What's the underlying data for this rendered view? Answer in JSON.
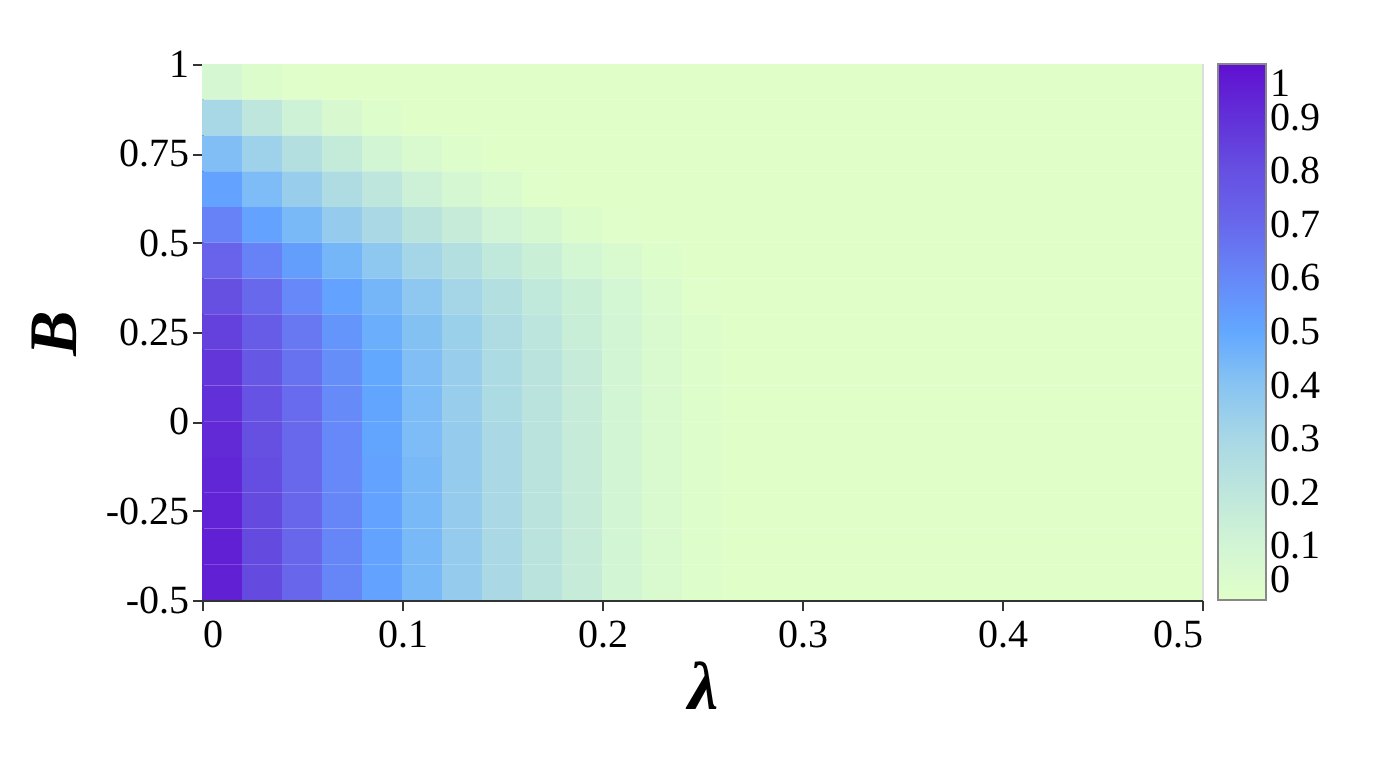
{
  "chart_data": {
    "type": "heatmap",
    "xlabel": "λ",
    "ylabel": "B",
    "x": [
      0.01,
      0.03,
      0.05,
      0.07,
      0.09,
      0.11,
      0.13,
      0.15,
      0.17,
      0.19,
      0.21,
      0.23,
      0.25,
      0.27,
      0.29,
      0.31,
      0.33,
      0.35,
      0.37,
      0.39,
      0.41,
      0.43,
      0.45,
      0.47,
      0.49
    ],
    "y": [
      0.95,
      0.85,
      0.75,
      0.65,
      0.55,
      0.45,
      0.35,
      0.25,
      0.15,
      0.05,
      -0.05,
      -0.15,
      -0.25,
      -0.35,
      -0.45
    ],
    "xlim": [
      0,
      0.5
    ],
    "xticks": [
      0,
      0.1,
      0.2,
      0.3,
      0.4,
      0.5
    ],
    "ylim": [
      -0.5,
      1
    ],
    "yticks": [
      -0.5,
      -0.25,
      0,
      0.25,
      0.5,
      0.75,
      1
    ],
    "clim": [
      0,
      1
    ],
    "cticks": [
      0,
      0.1,
      0.2,
      0.3,
      0.4,
      0.5,
      0.6,
      0.7,
      0.8,
      0.9,
      1
    ],
    "colors": [
      "#e0ffc8",
      "#d2f5d4",
      "#bee6dc",
      "#a8d8e6",
      "#88c4f2",
      "#62a8ff",
      "#6688f8",
      "#6868ec",
      "#6650e2",
      "#6230d8",
      "#6010d0"
    ],
    "cells": [
      [
        0.08,
        0.03,
        0.01,
        0,
        0,
        0,
        0,
        0,
        0,
        0,
        0,
        0,
        0,
        0,
        0,
        0,
        0,
        0,
        0,
        0,
        0,
        0,
        0,
        0,
        0
      ],
      [
        0.3,
        0.2,
        0.12,
        0.06,
        0.02,
        0,
        0,
        0,
        0,
        0,
        0,
        0,
        0,
        0,
        0,
        0,
        0,
        0,
        0,
        0,
        0,
        0,
        0,
        0,
        0
      ],
      [
        0.42,
        0.33,
        0.25,
        0.17,
        0.1,
        0.05,
        0.02,
        0,
        0,
        0,
        0,
        0,
        0,
        0,
        0,
        0,
        0,
        0,
        0,
        0,
        0,
        0,
        0,
        0,
        0
      ],
      [
        0.52,
        0.43,
        0.35,
        0.27,
        0.2,
        0.13,
        0.08,
        0.04,
        0.01,
        0,
        0,
        0,
        0,
        0,
        0,
        0,
        0,
        0,
        0,
        0,
        0,
        0,
        0,
        0,
        0
      ],
      [
        0.62,
        0.52,
        0.44,
        0.36,
        0.29,
        0.22,
        0.16,
        0.11,
        0.07,
        0.03,
        0.01,
        0,
        0,
        0,
        0,
        0,
        0,
        0,
        0,
        0,
        0,
        0,
        0,
        0,
        0
      ],
      [
        0.72,
        0.62,
        0.53,
        0.45,
        0.38,
        0.31,
        0.25,
        0.19,
        0.14,
        0.09,
        0.05,
        0.02,
        0,
        0,
        0,
        0,
        0,
        0,
        0,
        0,
        0,
        0,
        0,
        0,
        0
      ],
      [
        0.8,
        0.7,
        0.6,
        0.52,
        0.45,
        0.38,
        0.31,
        0.25,
        0.19,
        0.14,
        0.09,
        0.04,
        0.01,
        0,
        0,
        0,
        0,
        0,
        0,
        0,
        0,
        0,
        0,
        0,
        0
      ],
      [
        0.85,
        0.75,
        0.65,
        0.56,
        0.48,
        0.41,
        0.34,
        0.27,
        0.21,
        0.15,
        0.1,
        0.05,
        0.02,
        0,
        0,
        0,
        0,
        0,
        0,
        0,
        0,
        0,
        0,
        0,
        0
      ],
      [
        0.88,
        0.77,
        0.67,
        0.58,
        0.5,
        0.42,
        0.35,
        0.28,
        0.22,
        0.16,
        0.1,
        0.05,
        0.02,
        0,
        0,
        0,
        0,
        0,
        0,
        0,
        0,
        0,
        0,
        0,
        0
      ],
      [
        0.9,
        0.79,
        0.69,
        0.59,
        0.51,
        0.43,
        0.35,
        0.28,
        0.22,
        0.16,
        0.1,
        0.05,
        0.02,
        0,
        0,
        0,
        0,
        0,
        0,
        0,
        0,
        0,
        0,
        0,
        0
      ],
      [
        0.92,
        0.8,
        0.7,
        0.6,
        0.51,
        0.43,
        0.36,
        0.29,
        0.22,
        0.16,
        0.1,
        0.05,
        0.02,
        0,
        0,
        0,
        0,
        0,
        0,
        0,
        0,
        0,
        0,
        0,
        0
      ],
      [
        0.93,
        0.81,
        0.7,
        0.6,
        0.52,
        0.44,
        0.36,
        0.29,
        0.22,
        0.16,
        0.1,
        0.05,
        0.02,
        0,
        0,
        0,
        0,
        0,
        0,
        0,
        0,
        0,
        0,
        0,
        0
      ],
      [
        0.94,
        0.82,
        0.71,
        0.61,
        0.52,
        0.44,
        0.36,
        0.29,
        0.22,
        0.16,
        0.1,
        0.05,
        0.02,
        0,
        0,
        0,
        0,
        0,
        0,
        0,
        0,
        0,
        0,
        0,
        0
      ],
      [
        0.95,
        0.82,
        0.71,
        0.61,
        0.52,
        0.44,
        0.36,
        0.29,
        0.22,
        0.16,
        0.1,
        0.05,
        0.02,
        0,
        0,
        0,
        0,
        0,
        0,
        0,
        0,
        0,
        0,
        0,
        0
      ],
      [
        0.95,
        0.82,
        0.71,
        0.61,
        0.52,
        0.44,
        0.36,
        0.29,
        0.22,
        0.16,
        0.1,
        0.05,
        0.02,
        0,
        0,
        0,
        0,
        0,
        0,
        0,
        0,
        0,
        0,
        0,
        0
      ]
    ]
  }
}
